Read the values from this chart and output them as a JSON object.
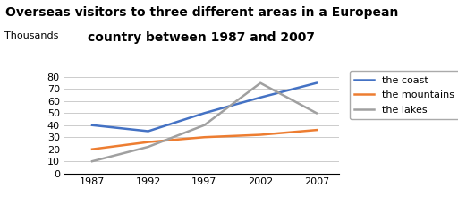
{
  "title_line1": "Overseas visitors to three different areas in a European",
  "title_line2": "country between 1987 and 2007",
  "ylabel": "Thousands",
  "years": [
    1987,
    1992,
    1997,
    2002,
    2007
  ],
  "coast": [
    40,
    35,
    50,
    63,
    75
  ],
  "mountains": [
    20,
    26,
    30,
    32,
    36
  ],
  "lakes": [
    10,
    22,
    40,
    75,
    50
  ],
  "coast_color": "#4472C4",
  "mountains_color": "#ED7D31",
  "lakes_color": "#A0A0A0",
  "legend_labels": [
    "the coast",
    "the mountains",
    "the lakes"
  ],
  "ylim": [
    0,
    85
  ],
  "yticks": [
    0,
    10,
    20,
    30,
    40,
    50,
    60,
    70,
    80
  ],
  "title_fontsize": 10,
  "axis_fontsize": 8,
  "legend_fontsize": 8,
  "ylabel_fontsize": 8,
  "background_color": "#ffffff",
  "grid_color": "#cccccc"
}
